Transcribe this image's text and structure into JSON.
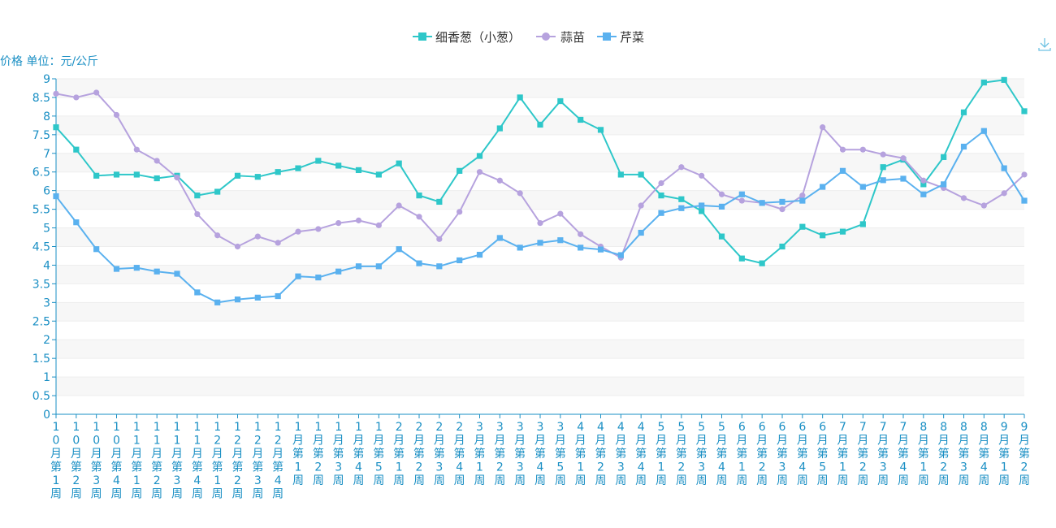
{
  "chart_data": {
    "type": "line",
    "ylabel": "价格 单位：元/公斤",
    "ylim": [
      0,
      9
    ],
    "ytick_step": 0.5,
    "grid": "horizontal bands",
    "legend_position": "top-center",
    "categories": [
      "10月第1周",
      "10月第2周",
      "10月第3周",
      "10月第4周",
      "11月第1周",
      "11月第2周",
      "11月第3周",
      "11月第4周",
      "12月第1周",
      "12月第2周",
      "12月第3周",
      "12月第4周",
      "1月第1周",
      "1月第2周",
      "1月第3周",
      "1月第4周",
      "1月第5周",
      "2月第1周",
      "2月第2周",
      "2月第3周",
      "2月第4周",
      "3月第1周",
      "3月第2周",
      "3月第3周",
      "3月第4周",
      "3月第5周",
      "4月第1周",
      "4月第2周",
      "4月第3周",
      "4月第4周",
      "5月第1周",
      "5月第2周",
      "5月第3周",
      "5月第4周",
      "6月第1周",
      "6月第2周",
      "6月第3周",
      "6月第4周",
      "6月第5周",
      "7月第1周",
      "7月第2周",
      "7月第3周",
      "7月第4周",
      "8月第1周",
      "8月第2周",
      "8月第3周",
      "8月第4周",
      "9月第1周",
      "9月第2周"
    ],
    "series": [
      {
        "name": "细香葱（小葱）",
        "color": "#2ec7c9",
        "marker": "square",
        "values": [
          7.7,
          7.1,
          6.4,
          6.43,
          6.43,
          6.33,
          6.4,
          5.87,
          5.97,
          6.4,
          6.37,
          6.5,
          6.6,
          6.8,
          6.67,
          6.55,
          6.43,
          6.73,
          5.87,
          5.7,
          6.53,
          6.93,
          7.67,
          8.5,
          7.77,
          8.4,
          7.9,
          7.63,
          6.43,
          6.43,
          5.87,
          5.77,
          5.45,
          4.77,
          4.18,
          4.05,
          4.5,
          5.03,
          4.8,
          4.9,
          5.1,
          6.63,
          6.83,
          6.17,
          6.9,
          8.1,
          8.9,
          8.97,
          8.13
        ]
      },
      {
        "name": "蒜苗",
        "color": "#b6a2de",
        "marker": "circle",
        "values": [
          8.6,
          8.5,
          8.63,
          8.03,
          7.1,
          6.8,
          6.35,
          5.37,
          4.8,
          4.5,
          4.77,
          4.6,
          4.9,
          4.97,
          5.13,
          5.2,
          5.07,
          5.6,
          5.3,
          4.7,
          5.43,
          6.5,
          6.27,
          5.93,
          5.13,
          5.38,
          4.83,
          4.5,
          4.2,
          5.6,
          6.2,
          6.63,
          6.4,
          5.9,
          5.73,
          5.67,
          5.5,
          5.87,
          7.7,
          7.1,
          7.1,
          6.97,
          6.87,
          6.27,
          6.07,
          5.8,
          5.6,
          5.93,
          6.43
        ]
      },
      {
        "name": "芹菜",
        "color": "#5ab1ef",
        "marker": "square",
        "values": [
          5.85,
          5.15,
          4.43,
          3.9,
          3.93,
          3.83,
          3.77,
          3.27,
          3.0,
          3.08,
          3.13,
          3.17,
          3.7,
          3.67,
          3.83,
          3.97,
          3.97,
          4.43,
          4.05,
          3.97,
          4.13,
          4.28,
          4.73,
          4.47,
          4.6,
          4.67,
          4.47,
          4.42,
          4.27,
          4.87,
          5.4,
          5.53,
          5.6,
          5.57,
          5.9,
          5.67,
          5.7,
          5.73,
          6.1,
          6.53,
          6.1,
          6.28,
          6.32,
          5.9,
          6.17,
          7.18,
          7.6,
          6.6,
          5.73
        ]
      }
    ]
  },
  "toolbox": {
    "download_icon": "download-icon"
  }
}
